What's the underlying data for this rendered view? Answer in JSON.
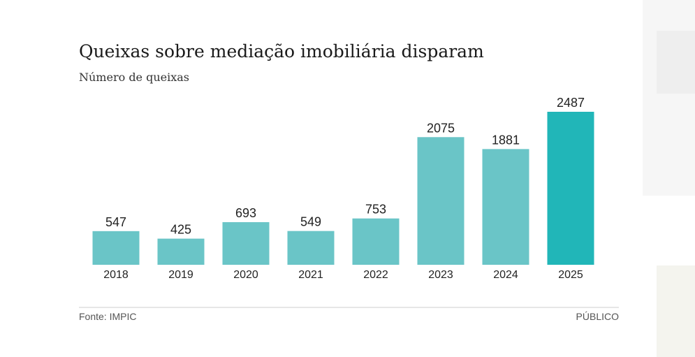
{
  "chart_data": {
    "type": "bar",
    "title": "Queixas sobre mediação imobiliária disparam",
    "subtitle": "Número de queixas",
    "categories": [
      "2018",
      "2019",
      "2020",
      "2021",
      "2022",
      "2023",
      "2024",
      "2025"
    ],
    "values": [
      547,
      425,
      693,
      549,
      753,
      2075,
      1881,
      2487
    ],
    "colors": [
      "#6ac5c7",
      "#6ac5c7",
      "#6ac5c7",
      "#6ac5c7",
      "#6ac5c7",
      "#6ac5c7",
      "#6ac5c7",
      "#21b6b8"
    ],
    "source": "Fonte: IMPIC",
    "brand": "PÚBLICO"
  }
}
